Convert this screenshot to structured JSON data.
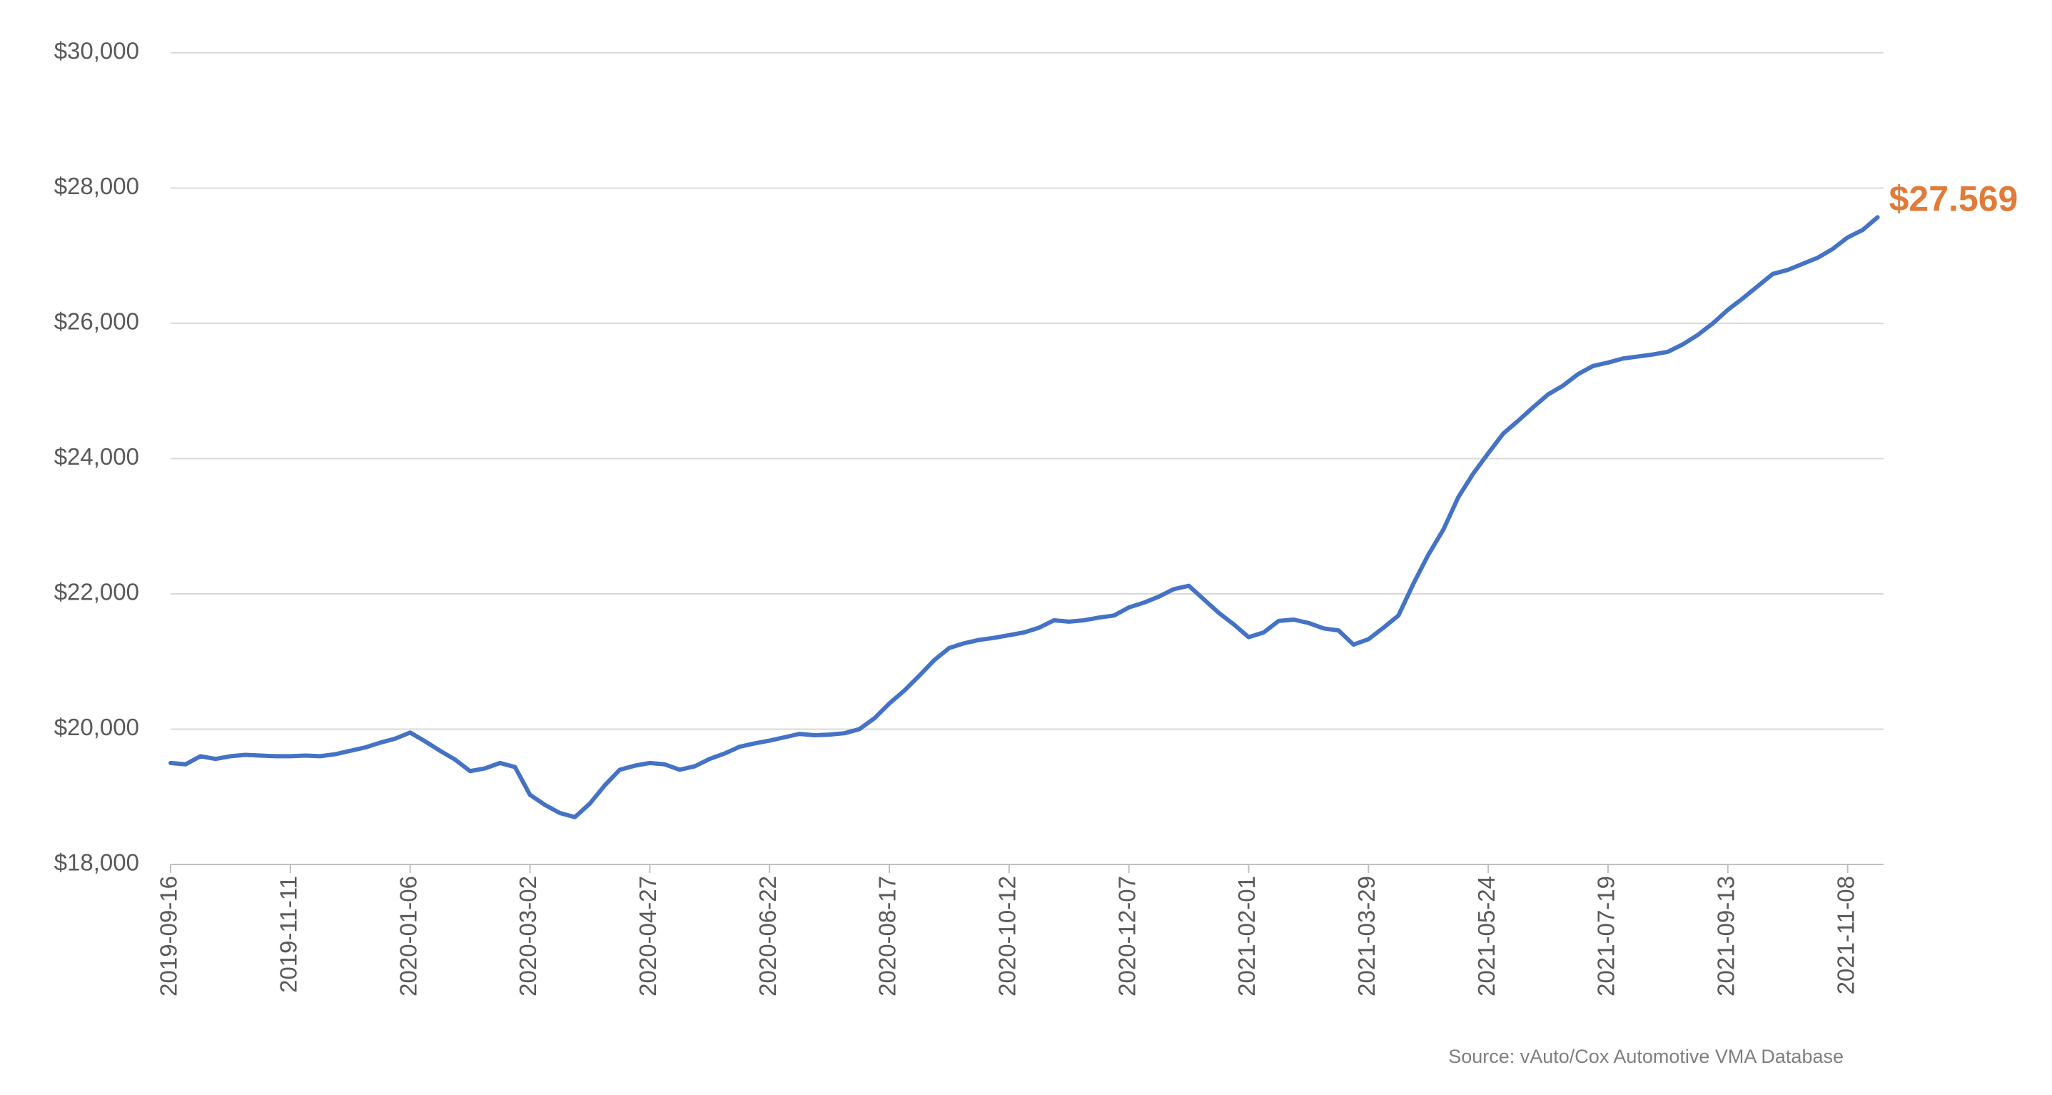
{
  "chart_data": {
    "type": "line",
    "categories": [
      "2019-09-16",
      null,
      null,
      null,
      null,
      null,
      null,
      null,
      "2019-11-11",
      null,
      null,
      null,
      null,
      null,
      null,
      null,
      "2020-01-06",
      null,
      null,
      null,
      null,
      null,
      null,
      null,
      "2020-03-02",
      null,
      null,
      null,
      null,
      null,
      null,
      null,
      "2020-04-27",
      null,
      null,
      null,
      null,
      null,
      null,
      null,
      "2020-06-22",
      null,
      null,
      null,
      null,
      null,
      null,
      null,
      "2020-08-17",
      null,
      null,
      null,
      null,
      null,
      null,
      null,
      "2020-10-12",
      null,
      null,
      null,
      null,
      null,
      null,
      null,
      "2020-12-07",
      null,
      null,
      null,
      null,
      null,
      null,
      null,
      "2021-02-01",
      null,
      null,
      null,
      null,
      null,
      null,
      null,
      "2021-03-29",
      null,
      null,
      null,
      null,
      null,
      null,
      null,
      "2021-05-24",
      null,
      null,
      null,
      null,
      null,
      null,
      null,
      "2021-07-19",
      null,
      null,
      null,
      null,
      null,
      null,
      null,
      "2021-09-13",
      null,
      null,
      null,
      null,
      null,
      null,
      null,
      "2021-11-08",
      null,
      null
    ],
    "series": [
      {
        "color": "#4472c4",
        "values": [
          19500,
          19480,
          19600,
          19560,
          19600,
          19620,
          19610,
          19600,
          19600,
          19610,
          19600,
          19630,
          19680,
          19730,
          19800,
          19860,
          19950,
          19820,
          19680,
          19550,
          19380,
          19420,
          19500,
          19440,
          19030,
          18880,
          18760,
          18700,
          18900,
          19170,
          19400,
          19460,
          19500,
          19480,
          19400,
          19450,
          19560,
          19640,
          19740,
          19790,
          19830,
          19880,
          19930,
          19910,
          19920,
          19940,
          20000,
          20160,
          20380,
          20570,
          20790,
          21020,
          21200,
          21270,
          21320,
          21350,
          21390,
          21430,
          21500,
          21610,
          21590,
          21610,
          21650,
          21680,
          21800,
          21870,
          21960,
          22070,
          22120,
          21920,
          21720,
          21550,
          21360,
          21430,
          21600,
          21620,
          21570,
          21490,
          21460,
          21250,
          21330,
          21500,
          21680,
          22150,
          22580,
          22950,
          23430,
          23780,
          24080,
          24370,
          24560,
          24760,
          24950,
          25080,
          25250,
          25370,
          25420,
          25480,
          25510,
          25540,
          25580,
          25690,
          25830,
          26000,
          26200,
          26370,
          26550,
          26730,
          26790,
          26880,
          26970,
          27100,
          27270,
          27380,
          27569
        ]
      }
    ],
    "annotation": "$27.569",
    "annotation_color": "#e07b39",
    "ylim": [
      18000,
      30000
    ],
    "yticks": [
      {
        "value": 18000,
        "label": "$18,000"
      },
      {
        "value": 20000,
        "label": "$20,000"
      },
      {
        "value": 22000,
        "label": "$22,000"
      },
      {
        "value": 24000,
        "label": "$24,000"
      },
      {
        "value": 26000,
        "label": "$26,000"
      },
      {
        "value": 28000,
        "label": "$28,000"
      },
      {
        "value": 30000,
        "label": "$30,000"
      }
    ],
    "grid": true,
    "source": "Source: vAuto/Cox Automotive VMA Database"
  }
}
